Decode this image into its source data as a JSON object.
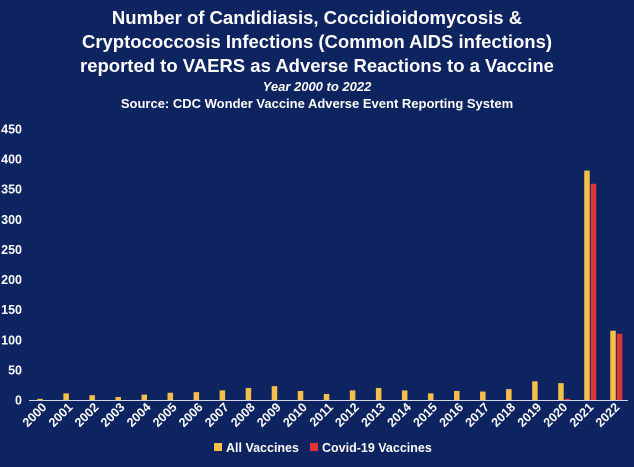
{
  "chart_data": {
    "type": "bar",
    "title_lines": [
      "Number of Candidiasis, Coccidioidomycosis &",
      "Cryptococcosis Infections (Common AIDS infections)",
      "reported to VAERS as Adverse Reactions to a Vaccine"
    ],
    "subtitle": "Year 2000 to 2022",
    "source": "Source: CDC Wonder Vaccine Adverse Event Reporting System",
    "categories": [
      "2000",
      "2001",
      "2002",
      "2003",
      "2004",
      "2005",
      "2006",
      "2007",
      "2008",
      "2009",
      "2010",
      "2011",
      "2012",
      "2013",
      "2014",
      "2015",
      "2016",
      "2017",
      "2018",
      "2019",
      "2020",
      "2021",
      "2022"
    ],
    "series": [
      {
        "name": "All Vaccines",
        "color": "#f5c04a",
        "values": [
          2,
          11,
          8,
          5,
          9,
          12,
          13,
          16,
          20,
          23,
          15,
          10,
          16,
          20,
          16,
          11,
          15,
          14,
          18,
          31,
          28,
          381,
          115
        ]
      },
      {
        "name": "Covid-19 Vaccines",
        "color": "#e03535",
        "values": [
          0,
          0,
          0,
          0,
          0,
          0,
          0,
          0,
          0,
          0,
          0,
          0,
          0,
          0,
          0,
          0,
          0,
          0,
          0,
          0,
          2,
          359,
          110
        ]
      }
    ],
    "ylim": [
      0,
      450
    ],
    "yticks": [
      0,
      50,
      100,
      150,
      200,
      250,
      300,
      350,
      400,
      450
    ],
    "grid": false,
    "legend_position": "bottom"
  }
}
